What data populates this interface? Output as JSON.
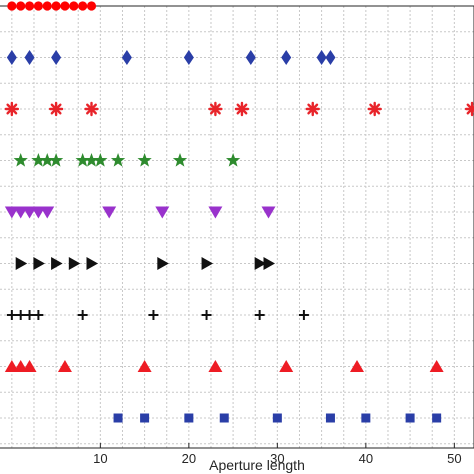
{
  "chart_data": {
    "type": "scatter",
    "xlabel": "Aperture length",
    "ylabel": "",
    "xlim": [
      -1,
      53
    ],
    "xticks": [
      "10",
      "20",
      "30",
      "40",
      "50"
    ],
    "grid": true,
    "legend": "none",
    "series": [
      {
        "marker": "circle",
        "color": "#ff0000",
        "x": [
          0,
          1,
          2,
          3,
          4,
          5,
          6,
          7,
          8,
          9
        ]
      },
      {
        "marker": "diamond",
        "color": "#2a3ea7",
        "x": [
          0,
          2,
          5,
          13,
          20,
          27,
          31,
          35,
          36
        ]
      },
      {
        "marker": "asterisk",
        "color": "#e8242a",
        "x": [
          0,
          5,
          9,
          23,
          26,
          34,
          41,
          52
        ]
      },
      {
        "marker": "star",
        "color": "#2e8b2e",
        "x": [
          1,
          3,
          4,
          5,
          8,
          9,
          10,
          12,
          15,
          19,
          25
        ]
      },
      {
        "marker": "triangle-down",
        "color": "#9932cc",
        "x": [
          0,
          1,
          2,
          3,
          4,
          11,
          17,
          23,
          29
        ]
      },
      {
        "marker": "triangle-right",
        "color": "#111111",
        "x": [
          1,
          3,
          5,
          7,
          9,
          17,
          22,
          28,
          29
        ]
      },
      {
        "marker": "plus",
        "color": "#111111",
        "x": [
          0,
          1,
          2,
          3,
          8,
          16,
          22,
          28,
          33
        ]
      },
      {
        "marker": "triangle-up",
        "color": "#ee1c24",
        "x": [
          0,
          1,
          2,
          6,
          15,
          23,
          31,
          39,
          48
        ]
      },
      {
        "marker": "square",
        "color": "#2a3ea7",
        "x": [
          12,
          15,
          20,
          24,
          30,
          36,
          40,
          45,
          48
        ]
      }
    ]
  }
}
